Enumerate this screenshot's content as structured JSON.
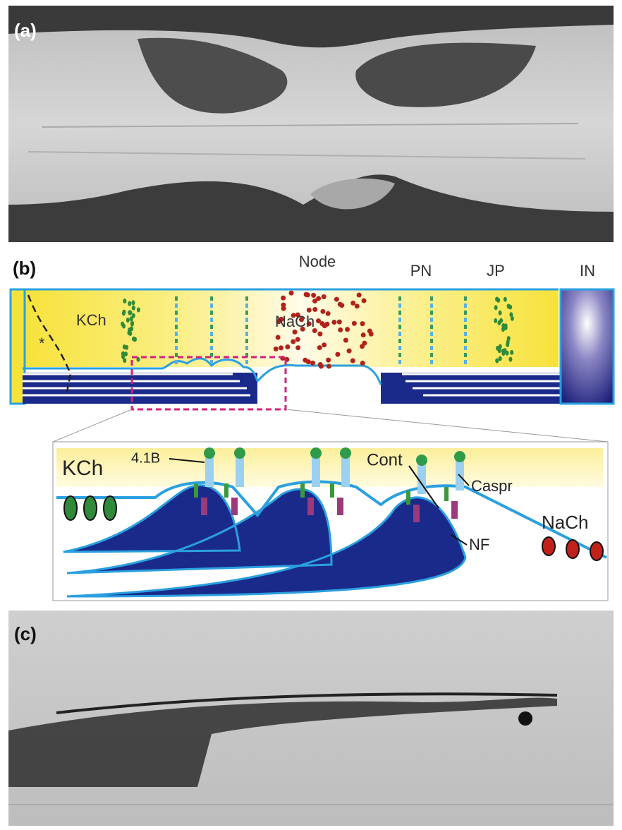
{
  "panel_a": {
    "label": "(a)"
  },
  "panel_b": {
    "label": "(b)",
    "regions": [
      "Node",
      "PN",
      "JP",
      "IN"
    ],
    "kch": "KCh",
    "nach": "NaCh",
    "asterisk": "*",
    "inset": {
      "kch": "KCh",
      "protein_41b": "4.1B",
      "cont": "Cont",
      "caspr": "Caspr",
      "nach": "NaCh",
      "nf": "NF"
    }
  },
  "panel_c": {
    "label": "(c)"
  }
}
